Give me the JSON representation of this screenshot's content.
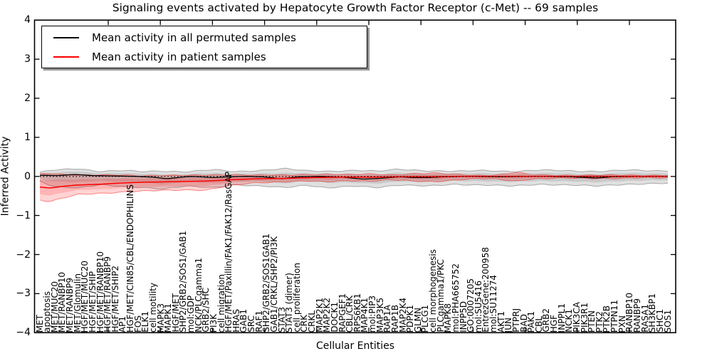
{
  "chart_data": {
    "type": "line",
    "title": "Signaling events activated by Hepatocyte Growth Factor Receptor (c-Met) -- 69 samples",
    "xlabel": "Cellular Entities",
    "ylabel": "Inferred Activity",
    "ylim": [
      -4,
      4
    ],
    "yticks": [
      4,
      3,
      2,
      1,
      0,
      -1,
      -2,
      -3,
      -4
    ],
    "grid": false,
    "legend_position": "upper-left",
    "categories": [
      "MET",
      "apoptosis",
      "MET/MUC20",
      "MET/RANBP10",
      "MET/RANBP9",
      "MET/Glomulin",
      "HGF/MET/MUC20",
      "HGF/MET/SHIP",
      "HGF/MET/RANBP10",
      "HGF/MET/RANBP9",
      "HGF/MET/SHIP2",
      "AP1",
      "HGF/MET/CIN85/CBL/ENDOPHILINS",
      "FOS",
      "ELK1",
      "cell motility",
      "MAPK3",
      "MAPK1",
      "HGF/MET",
      "SHP2/GRB2/SOS1/GAB1",
      "mol:GDP",
      "NCK/PLCgamma1",
      "GRB2/SHC",
      "PI3K",
      "cell migration",
      "HGF/MET/Paxillin/FAK1/FAK12/RasGAP",
      "HRAS",
      "GAB1",
      "SRC",
      "RAF1",
      "SHP2/GRB2/SOS1GAB1",
      "GAB1/CRKL/SHP2/PI3K",
      "STAT3",
      "STAT3 (dimer)",
      "cell proliferation",
      "CRK",
      "CRKL",
      "MAP2K1",
      "MAP2K2",
      "DOCK1",
      "RAPGEF1",
      "CBL/CRK",
      "RPS6KB1",
      "MAP4K1",
      "mol:PIP3",
      "MAP3K5",
      "RAP1A",
      "RAP1B",
      "MAP2K4",
      "PDPK1",
      "GLMN",
      "PLCG1",
      "cell morphogenesis",
      "PLCgamma1/PKC",
      "MAPK8",
      "mol:PHA665752",
      "INPP5D",
      "GO:0007205",
      "mol:SU5416",
      "EntrezGene:200958",
      "mol:SU11274",
      "AKT1",
      "JUN",
      "PTPRJ",
      "BAD",
      "PAK1",
      "CBL",
      "GRB2",
      "HGF",
      "INPPL1",
      "NCK1",
      "PIK3CA",
      "PIK3R1",
      "PTEN",
      "PTK2",
      "PTK2B",
      "PTPN11",
      "PXN",
      "RANBP10",
      "RANBP9",
      "RASA1",
      "SH3KBP1",
      "SHC1",
      "SOS1"
    ],
    "series": [
      {
        "name": "Mean activity in all permuted samples",
        "color": "#000000",
        "style": "solid",
        "anchors": [
          [
            0,
            0.03
          ],
          [
            2.3,
            0.02
          ],
          [
            4.6,
            0.05
          ],
          [
            7,
            0.02
          ],
          [
            9.8,
            0.01
          ],
          [
            12.6,
            0
          ],
          [
            15,
            -0.02
          ],
          [
            16.8,
            -0.06
          ],
          [
            18.7,
            -0.02
          ],
          [
            20.1,
            0
          ],
          [
            23,
            -0.03
          ],
          [
            24.8,
            -0.01
          ],
          [
            27.2,
            0
          ],
          [
            29.5,
            -0.01
          ],
          [
            31.9,
            -0.06
          ],
          [
            34.2,
            -0.01
          ],
          [
            37.1,
            0
          ],
          [
            39.9,
            -0.02
          ],
          [
            42.7,
            -0.07
          ],
          [
            45.1,
            -0.05
          ],
          [
            47.4,
            -0.01
          ],
          [
            49.3,
            -0.03
          ],
          [
            51.2,
            -0.03
          ],
          [
            53.5,
            -0.01
          ],
          [
            55.9,
            0
          ],
          [
            60.6,
            -0.01
          ],
          [
            65.3,
            0
          ],
          [
            70,
            -0.01
          ],
          [
            73.6,
            -0.04
          ],
          [
            75.6,
            -0.01
          ],
          [
            79.4,
            0
          ],
          [
            83,
            0
          ]
        ]
      },
      {
        "name": "Mean activity in patient samples",
        "color": "#ff0000",
        "style": "solid",
        "anchors": [
          [
            0,
            -0.27
          ],
          [
            1.3,
            -0.3
          ],
          [
            3.2,
            -0.25
          ],
          [
            5.1,
            -0.22
          ],
          [
            7.9,
            -0.2
          ],
          [
            10.7,
            -0.17
          ],
          [
            13.5,
            -0.15
          ],
          [
            16.4,
            -0.14
          ],
          [
            19.2,
            -0.13
          ],
          [
            22,
            -0.12
          ],
          [
            23.9,
            -0.1
          ],
          [
            25.8,
            -0.08
          ],
          [
            28.6,
            -0.06
          ],
          [
            32.4,
            -0.05
          ],
          [
            36.1,
            -0.03
          ],
          [
            39.9,
            -0.02
          ],
          [
            43.6,
            -0.02
          ],
          [
            47.4,
            -0.01
          ],
          [
            51.2,
            -0.01
          ],
          [
            55.9,
            0
          ],
          [
            83,
            0
          ]
        ]
      },
      {
        "name": "zero-reference",
        "color": "#000000",
        "style": "dotted",
        "anchors": [
          [
            0,
            0
          ],
          [
            83,
            0
          ]
        ]
      }
    ],
    "bands": [
      {
        "name": "permuted-confidence-band",
        "color": "#000000",
        "opacity": 0.12,
        "follows": 0,
        "upper": [
          [
            0,
            0.1
          ],
          [
            1.8,
            0.16
          ],
          [
            5.1,
            0.2
          ],
          [
            7.9,
            0.13
          ],
          [
            10.7,
            0.15
          ],
          [
            13.5,
            0.12
          ],
          [
            16.4,
            0.14
          ],
          [
            19.2,
            0.12
          ],
          [
            23,
            0.17
          ],
          [
            25.8,
            0.12
          ],
          [
            28.6,
            0.15
          ],
          [
            32.4,
            0.2
          ],
          [
            35.2,
            0.14
          ],
          [
            38,
            0.13
          ],
          [
            41.8,
            0.16
          ],
          [
            44.6,
            0.13
          ],
          [
            47.4,
            0.18
          ],
          [
            51.2,
            0.15
          ],
          [
            54.9,
            0.13
          ],
          [
            58.7,
            0.15
          ],
          [
            62.5,
            0.13
          ],
          [
            66.2,
            0.16
          ],
          [
            70,
            0.14
          ],
          [
            73.6,
            0.13
          ],
          [
            77.5,
            0.16
          ],
          [
            81.3,
            0.14
          ],
          [
            83,
            0.15
          ]
        ],
        "lower": [
          [
            0,
            -0.12
          ],
          [
            1.8,
            -0.25
          ],
          [
            5.1,
            -0.3
          ],
          [
            7.9,
            -0.22
          ],
          [
            10.7,
            -0.25
          ],
          [
            13.5,
            -0.28
          ],
          [
            16.4,
            -0.33
          ],
          [
            19.2,
            -0.25
          ],
          [
            23,
            -0.28
          ],
          [
            25.8,
            -0.22
          ],
          [
            28.6,
            -0.25
          ],
          [
            32.4,
            -0.28
          ],
          [
            35.2,
            -0.22
          ],
          [
            38,
            -0.3
          ],
          [
            41.8,
            -0.25
          ],
          [
            44.6,
            -0.28
          ],
          [
            47.4,
            -0.22
          ],
          [
            51.2,
            -0.25
          ],
          [
            54.9,
            -0.2
          ],
          [
            58.7,
            -0.22
          ],
          [
            62.5,
            -0.25
          ],
          [
            66.2,
            -0.2
          ],
          [
            70,
            -0.22
          ],
          [
            73.6,
            -0.25
          ],
          [
            77.5,
            -0.2
          ],
          [
            81.3,
            -0.18
          ],
          [
            83,
            -0.18
          ]
        ]
      },
      {
        "name": "patient-confidence-band",
        "color": "#ff0000",
        "opacity": 0.17,
        "follows": 1,
        "upper": [
          [
            0,
            0.06
          ],
          [
            1.3,
            0.08
          ],
          [
            3.2,
            0.05
          ],
          [
            5.1,
            0.04
          ],
          [
            7.9,
            0.03
          ],
          [
            10.7,
            0.03
          ],
          [
            13.5,
            0.02
          ],
          [
            16.4,
            0.03
          ],
          [
            19.2,
            0.02
          ],
          [
            22,
            0.03
          ],
          [
            23.9,
            0.04
          ],
          [
            25.8,
            0.05
          ],
          [
            28.6,
            0.03
          ],
          [
            32.4,
            0.03
          ],
          [
            35.2,
            0.05
          ],
          [
            38,
            0.06
          ],
          [
            40.8,
            0.04
          ],
          [
            43.6,
            0.06
          ],
          [
            46.5,
            0.04
          ],
          [
            49.3,
            0.07
          ],
          [
            52.1,
            0.08
          ],
          [
            54.9,
            0.05
          ],
          [
            57.8,
            0.03
          ],
          [
            60.6,
            0.04
          ],
          [
            62.9,
            0.1
          ],
          [
            64.8,
            0.04
          ],
          [
            68.1,
            0.03
          ],
          [
            71.9,
            0.03
          ],
          [
            75.6,
            0.03
          ],
          [
            79.4,
            0.03
          ],
          [
            83,
            0.03
          ]
        ],
        "lower": [
          [
            0,
            -0.6
          ],
          [
            1.3,
            -0.65
          ],
          [
            3.2,
            -0.55
          ],
          [
            5.1,
            -0.46
          ],
          [
            7.9,
            -0.43
          ],
          [
            10.7,
            -0.4
          ],
          [
            13.5,
            -0.38
          ],
          [
            16.4,
            -0.36
          ],
          [
            19.2,
            -0.34
          ],
          [
            22,
            -0.35
          ],
          [
            23.9,
            -0.28
          ],
          [
            25.8,
            -0.22
          ],
          [
            28.6,
            -0.16
          ],
          [
            32.4,
            -0.13
          ],
          [
            35.2,
            -0.12
          ],
          [
            38,
            -0.14
          ],
          [
            40.8,
            -0.1
          ],
          [
            43.6,
            -0.12
          ],
          [
            46.5,
            -0.09
          ],
          [
            49.3,
            -0.12
          ],
          [
            52.1,
            -0.13
          ],
          [
            54.9,
            -0.09
          ],
          [
            57.8,
            -0.06
          ],
          [
            60.6,
            -0.07
          ],
          [
            62.9,
            -0.12
          ],
          [
            64.8,
            -0.06
          ],
          [
            68.1,
            -0.05
          ],
          [
            71.9,
            -0.05
          ],
          [
            75.6,
            -0.05
          ],
          [
            79.4,
            -0.04
          ],
          [
            83,
            -0.04
          ]
        ]
      }
    ]
  }
}
